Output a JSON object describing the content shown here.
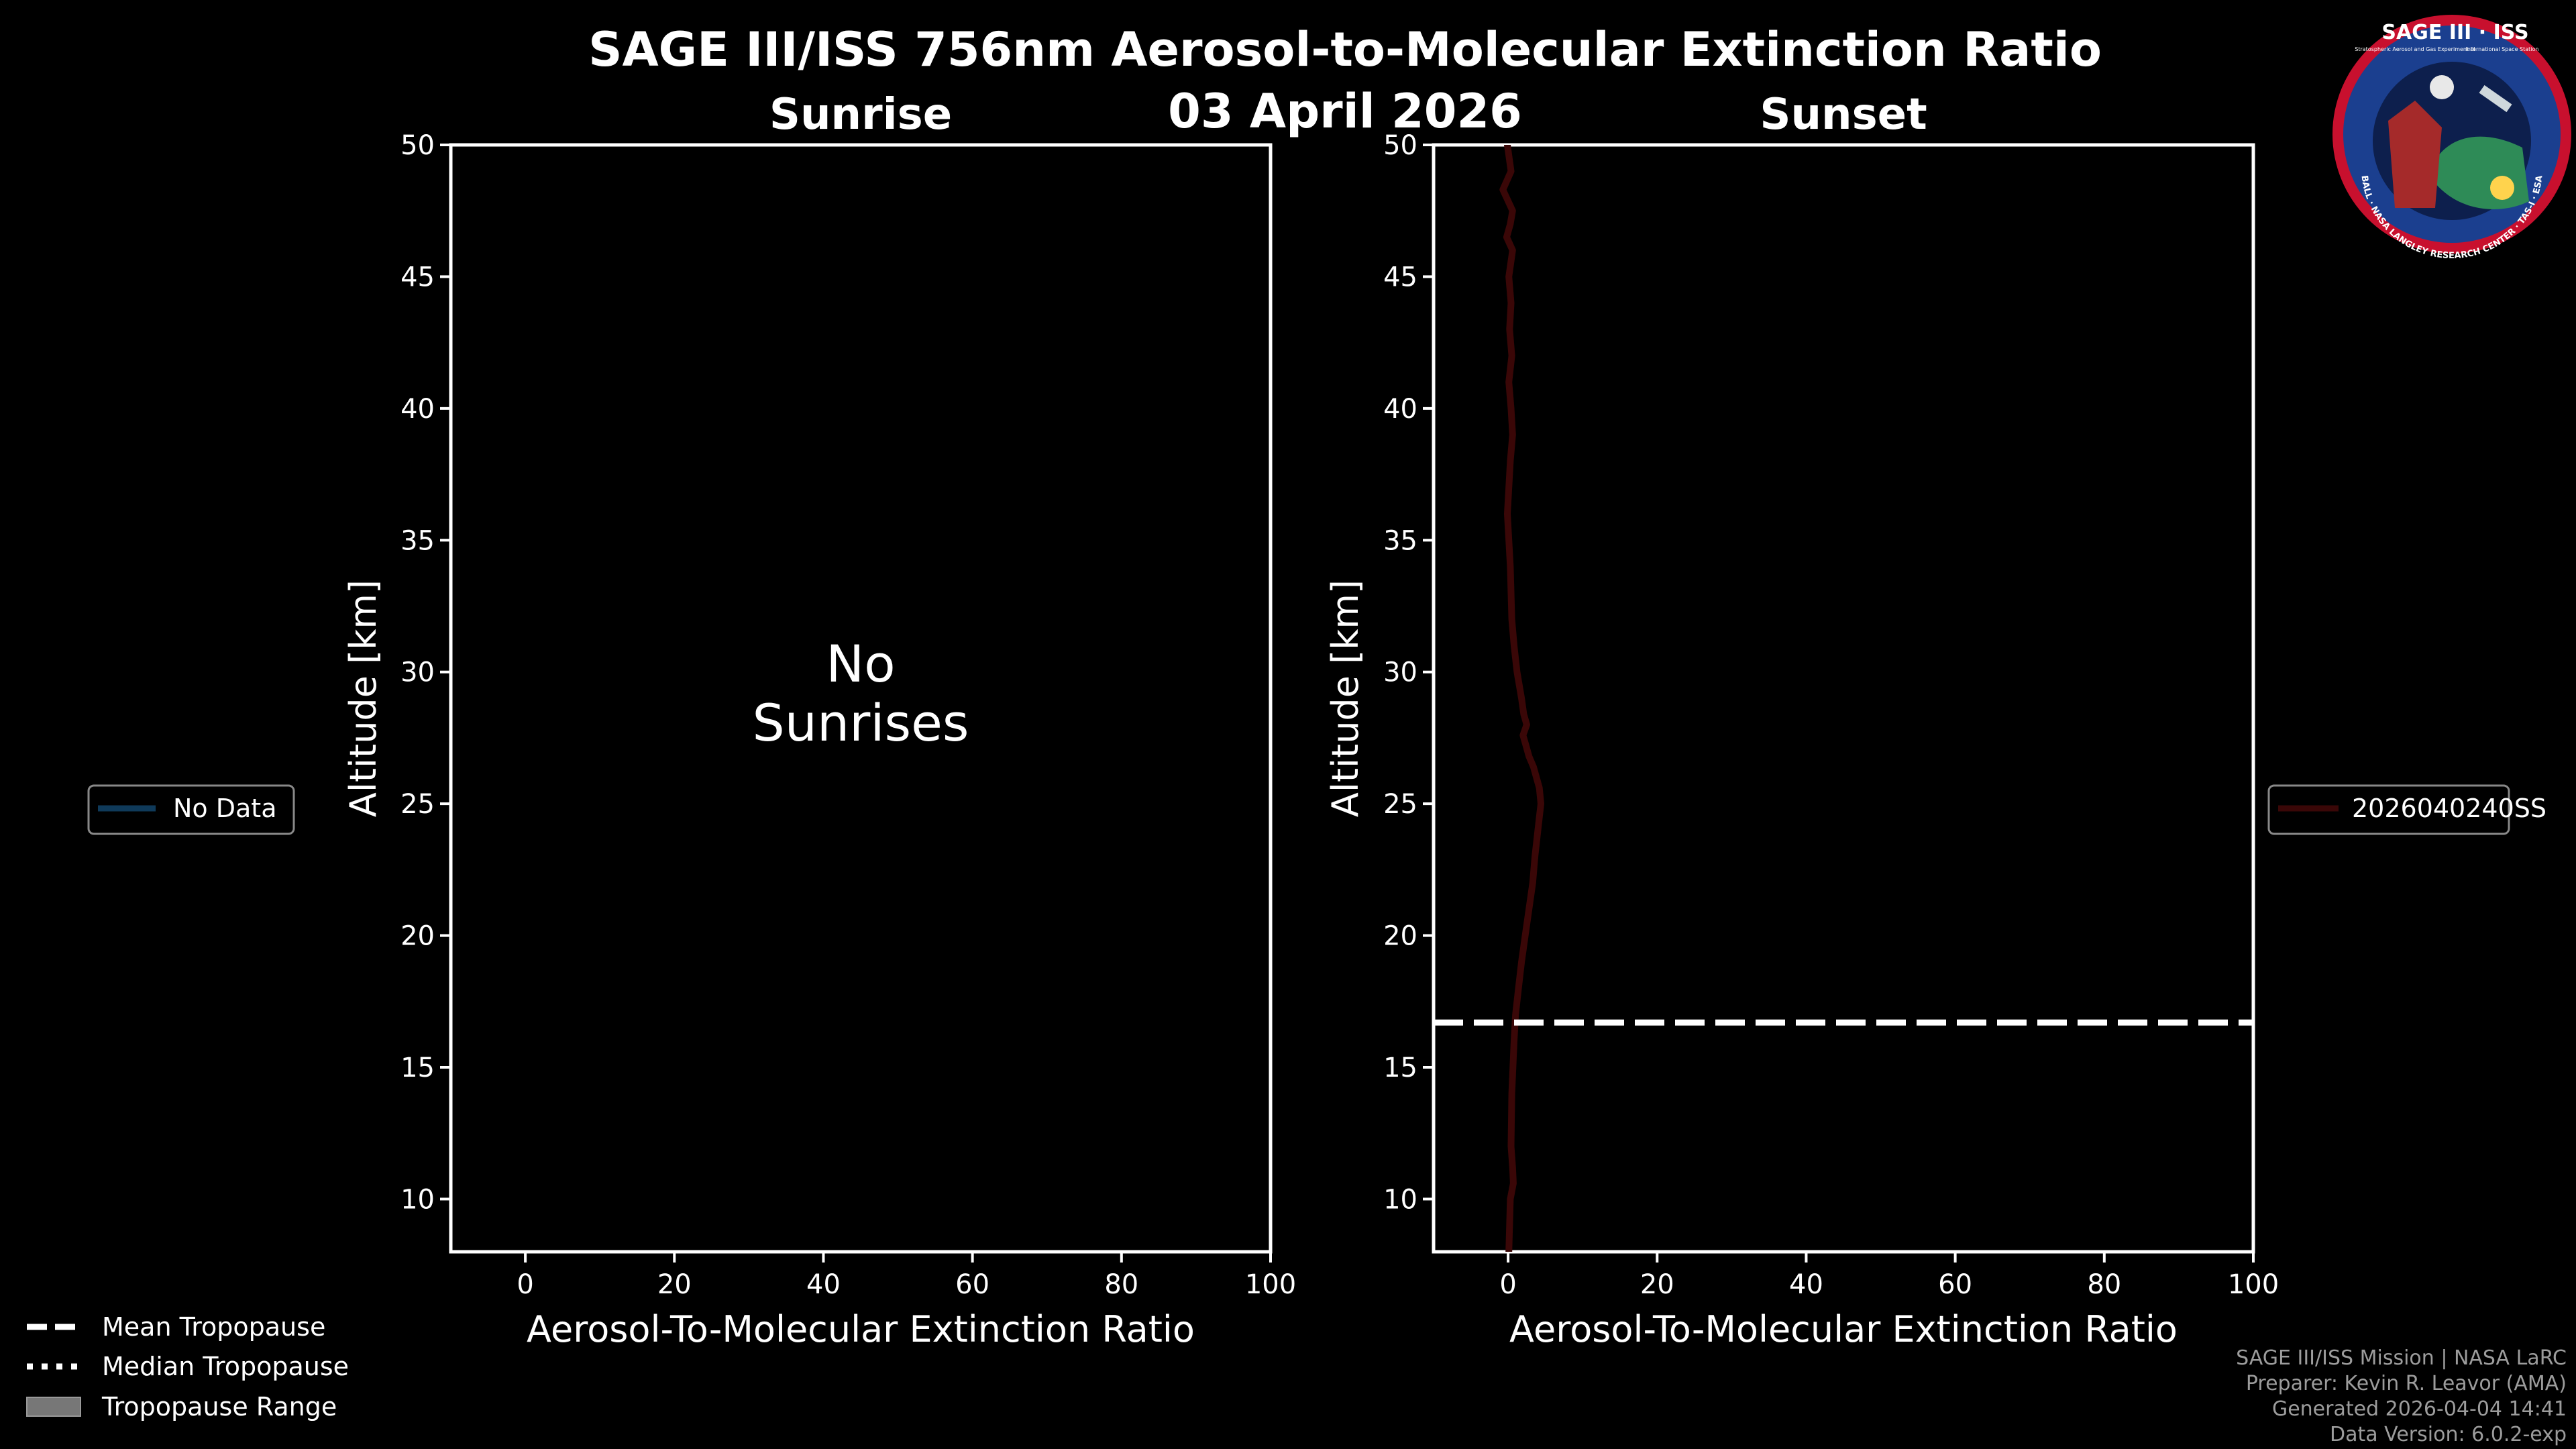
{
  "title": "SAGE III/ISS 756nm Aerosol-to-Molecular Extinction Ratio",
  "date": "03 April 2026",
  "colors": {
    "background": "#000000",
    "axes": "#ffffff",
    "sunrise_series": "#0f3a5a",
    "sunset_series": "#3a0707",
    "footer": "#9c9c9c",
    "legend_edge": "#888888"
  },
  "chart_data": [
    {
      "type": "line",
      "title": "Sunrise",
      "xlabel": "Aerosol-To-Molecular Extinction Ratio",
      "ylabel": "Altitude [km]",
      "xlim": [
        -10,
        100
      ],
      "ylim": [
        8,
        50
      ],
      "xticks": [
        0,
        20,
        40,
        60,
        80,
        100
      ],
      "yticks": [
        10,
        15,
        20,
        25,
        30,
        35,
        40,
        45,
        50
      ],
      "grid": false,
      "annotation": [
        "No",
        "Sunrises"
      ],
      "legend": {
        "placement": "left",
        "entries": [
          "No Data"
        ]
      },
      "series": [
        {
          "name": "No Data",
          "color": "#0f3a5a",
          "x": [],
          "y": []
        }
      ]
    },
    {
      "type": "line",
      "title": "Sunset",
      "xlabel": "Aerosol-To-Molecular Extinction Ratio",
      "ylabel": "Altitude [km]",
      "xlim": [
        -10,
        100
      ],
      "ylim": [
        8,
        50
      ],
      "xticks": [
        0,
        20,
        40,
        60,
        80,
        100
      ],
      "yticks": [
        10,
        15,
        20,
        25,
        30,
        35,
        40,
        45,
        50
      ],
      "grid": false,
      "legend": {
        "placement": "right",
        "entries": [
          "2026040240SS"
        ]
      },
      "mean_tropopause_km": 16.7,
      "series": [
        {
          "name": "2026040240SS",
          "color": "#3a0707",
          "x": [
            0.1,
            0.2,
            0.3,
            0.7,
            0.6,
            0.4,
            0.5,
            0.8,
            1.0,
            1.4,
            1.8,
            2.3,
            2.8,
            3.3,
            3.6,
            4.0,
            4.4,
            4.2,
            3.8,
            3.4,
            2.8,
            2.4,
            2.0,
            2.5,
            2.1,
            1.8,
            1.2,
            0.8,
            0.5,
            0.4,
            0.3,
            0.1,
            -0.1,
            0.1,
            0.3,
            0.6,
            0.4,
            0.1,
            0.5,
            0.2,
            0.4,
            0.1,
            0.6,
            -0.2,
            0.3,
            0.6,
            -0.7,
            0.4,
            -0.1
          ],
          "y": [
            8,
            9,
            10,
            10.6,
            11.2,
            12,
            14,
            16,
            17,
            18,
            19,
            20,
            21,
            22,
            23,
            24,
            25,
            25.6,
            26,
            26.4,
            26.8,
            27.2,
            27.6,
            28,
            28.4,
            29,
            30,
            31,
            32,
            33,
            34,
            35,
            36,
            37,
            38,
            39,
            40,
            41,
            42,
            43,
            44,
            45,
            46,
            46.5,
            47,
            47.5,
            48.3,
            49,
            50
          ]
        }
      ]
    }
  ],
  "legend_bottom": [
    {
      "label": "Mean Tropopause",
      "style": "dashed"
    },
    {
      "label": "Median Tropopause",
      "style": "dotted"
    },
    {
      "label": "Tropopause Range",
      "style": "filled"
    }
  ],
  "footer": [
    "SAGE III/ISS Mission | NASA LaRC",
    "Preparer: Kevin R. Leavor (AMA)",
    "Generated 2026-04-04 14:41",
    "Data Version: 6.0.2-exp"
  ],
  "logo": {
    "title": "SAGE III · ISS",
    "subtitle_left": "Stratospheric Aerosol and Gas Experiment III",
    "subtitle_right": "International Space Station",
    "ring_text": "BALL · NASA LANGLEY RESEARCH CENTER · TAS-I · ESA"
  }
}
